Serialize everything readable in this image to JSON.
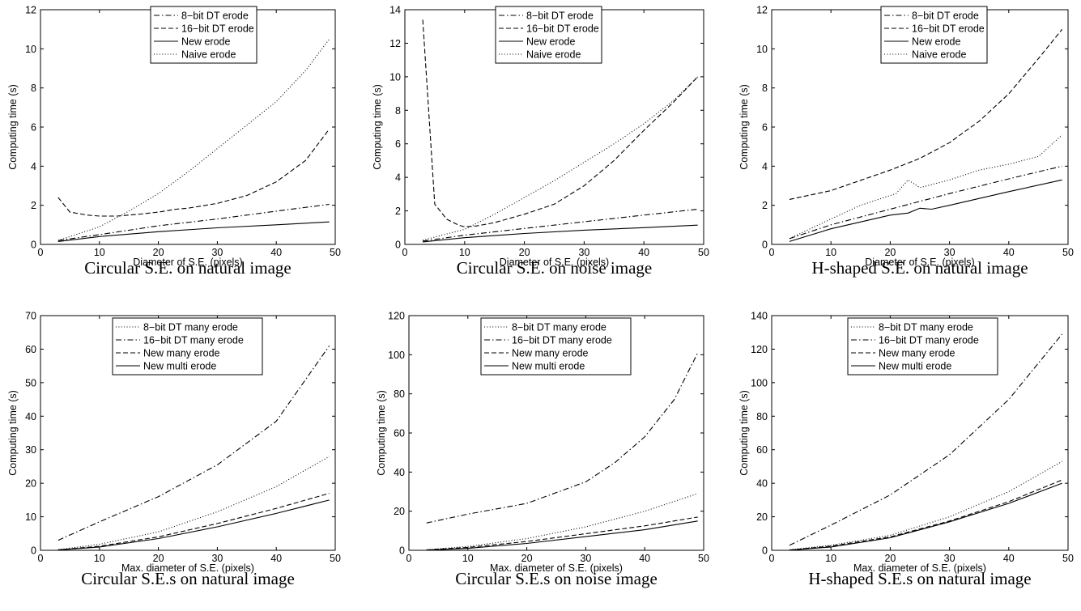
{
  "chart_data": [
    {
      "type": "line",
      "caption": "Circular S.E. on natural image",
      "xlabel": "Diameter of S.E. (pixels)",
      "ylabel": "Computing time (s)",
      "xlim": [
        0,
        50
      ],
      "ylim": [
        0,
        12
      ],
      "xticks": [
        0,
        10,
        20,
        30,
        40,
        50
      ],
      "yticks": [
        0,
        2,
        4,
        6,
        8,
        10,
        12
      ],
      "legend_position": "top-center",
      "series": [
        {
          "name": "8−bit DT erode",
          "style": "dashdot",
          "x": [
            3,
            10,
            20,
            30,
            40,
            49
          ],
          "y": [
            0.2,
            0.5,
            0.95,
            1.3,
            1.7,
            2.05
          ]
        },
        {
          "name": "16−bit DT erode",
          "style": "dashed",
          "x": [
            3,
            5,
            8,
            10,
            13,
            17,
            20,
            23,
            25,
            30,
            35,
            40,
            45,
            49
          ],
          "y": [
            2.4,
            1.65,
            1.5,
            1.45,
            1.45,
            1.55,
            1.65,
            1.8,
            1.85,
            2.1,
            2.5,
            3.2,
            4.3,
            5.9
          ]
        },
        {
          "name": "New erode",
          "style": "solid",
          "x": [
            3,
            10,
            20,
            30,
            40,
            49
          ],
          "y": [
            0.15,
            0.4,
            0.65,
            0.85,
            1.0,
            1.15
          ]
        },
        {
          "name": "Naive erode",
          "style": "dotted",
          "x": [
            3,
            10,
            15,
            20,
            25,
            30,
            35,
            40,
            45,
            49
          ],
          "y": [
            0.2,
            0.9,
            1.7,
            2.6,
            3.7,
            4.9,
            6.1,
            7.3,
            8.9,
            10.5
          ]
        }
      ]
    },
    {
      "type": "line",
      "caption": "Circular S.E. on noise image",
      "xlabel": "Diameter of S.E. (pixels)",
      "ylabel": "Computing time (s)",
      "xlim": [
        0,
        50
      ],
      "ylim": [
        0,
        14
      ],
      "xticks": [
        0,
        10,
        20,
        30,
        40,
        50
      ],
      "yticks": [
        0,
        2,
        4,
        6,
        8,
        10,
        12,
        14
      ],
      "legend_position": "top-center",
      "series": [
        {
          "name": "8−bit DT erode",
          "style": "dashdot",
          "x": [
            3,
            10,
            20,
            30,
            40,
            49
          ],
          "y": [
            0.2,
            0.55,
            0.95,
            1.35,
            1.75,
            2.1
          ]
        },
        {
          "name": "16−bit DT erode",
          "style": "dashed",
          "x": [
            3,
            5,
            7,
            9,
            10,
            12,
            15,
            20,
            25,
            30,
            35,
            40,
            45,
            49
          ],
          "y": [
            13.4,
            2.4,
            1.5,
            1.15,
            1.05,
            1.1,
            1.3,
            1.8,
            2.4,
            3.5,
            5.0,
            6.8,
            8.5,
            10.0
          ]
        },
        {
          "name": "New erode",
          "style": "solid",
          "x": [
            3,
            10,
            20,
            30,
            40,
            49
          ],
          "y": [
            0.15,
            0.4,
            0.65,
            0.85,
            1.0,
            1.15
          ]
        },
        {
          "name": "Naive erode",
          "style": "dotted",
          "x": [
            3,
            10,
            15,
            20,
            25,
            30,
            35,
            40,
            45,
            49
          ],
          "y": [
            0.25,
            0.9,
            1.8,
            2.8,
            3.8,
            4.9,
            6.0,
            7.2,
            8.6,
            10.0
          ]
        }
      ]
    },
    {
      "type": "line",
      "caption": "H-shaped S.E. on natural image",
      "xlabel": "Diameter of S.E. (pixels)",
      "ylabel": "Computing time (s)",
      "xlim": [
        0,
        50
      ],
      "ylim": [
        0,
        12
      ],
      "xticks": [
        0,
        10,
        20,
        30,
        40,
        50
      ],
      "yticks": [
        0,
        2,
        4,
        6,
        8,
        10,
        12
      ],
      "legend_position": "top-center",
      "series": [
        {
          "name": "8−bit DT erode",
          "style": "dashdot",
          "x": [
            3,
            10,
            20,
            30,
            40,
            49
          ],
          "y": [
            0.3,
            1.0,
            1.8,
            2.6,
            3.35,
            4.0
          ]
        },
        {
          "name": "16−bit DT erode",
          "style": "dashed",
          "x": [
            3,
            10,
            20,
            25,
            30,
            35,
            40,
            45,
            49
          ],
          "y": [
            2.3,
            2.75,
            3.8,
            4.4,
            5.2,
            6.3,
            7.7,
            9.5,
            11.0
          ]
        },
        {
          "name": "New erode",
          "style": "solid",
          "x": [
            3,
            10,
            20,
            23,
            25,
            27,
            30,
            40,
            49
          ],
          "y": [
            0.15,
            0.8,
            1.5,
            1.6,
            1.85,
            1.8,
            2.0,
            2.7,
            3.3
          ]
        },
        {
          "name": "Naive erode",
          "style": "dotted",
          "x": [
            3,
            10,
            15,
            20,
            21,
            23,
            25,
            30,
            35,
            40,
            45,
            49
          ],
          "y": [
            0.3,
            1.3,
            2.0,
            2.5,
            2.6,
            3.3,
            2.9,
            3.3,
            3.8,
            4.1,
            4.5,
            5.6
          ]
        }
      ]
    },
    {
      "type": "line",
      "caption": "Circular S.E.s on natural image",
      "xlabel": "Max. diameter of S.E. (pixels)",
      "ylabel": "Computing time (s)",
      "xlim": [
        0,
        50
      ],
      "ylim": [
        0,
        70
      ],
      "xticks": [
        0,
        10,
        20,
        30,
        40,
        50
      ],
      "yticks": [
        0,
        10,
        20,
        30,
        40,
        50,
        60,
        70
      ],
      "legend_position": "top-center",
      "series": [
        {
          "name": "8−bit DT many erode",
          "style": "dotted",
          "x": [
            3,
            10,
            20,
            30,
            40,
            49
          ],
          "y": [
            0.2,
            1.8,
            5.5,
            11.5,
            19.0,
            28.0
          ]
        },
        {
          "name": "16−bit DT many erode",
          "style": "dashdot",
          "x": [
            3,
            10,
            20,
            30,
            40,
            49
          ],
          "y": [
            3.0,
            8.5,
            16.0,
            25.5,
            38.5,
            61.0
          ]
        },
        {
          "name": "New many erode",
          "style": "dashed",
          "x": [
            3,
            10,
            20,
            30,
            40,
            49
          ],
          "y": [
            0.15,
            1.2,
            4.0,
            8.0,
            12.5,
            17.0
          ]
        },
        {
          "name": "New multi erode",
          "style": "solid",
          "x": [
            3,
            10,
            20,
            30,
            40,
            49
          ],
          "y": [
            0.1,
            1.0,
            3.5,
            7.0,
            11.0,
            15.0
          ]
        }
      ]
    },
    {
      "type": "line",
      "caption": "Circular S.E.s on noise image",
      "xlabel": "Max. diameter of S.E. (pixels)",
      "ylabel": "Computing time (s)",
      "xlim": [
        0,
        50
      ],
      "ylim": [
        0,
        120
      ],
      "xticks": [
        0,
        10,
        20,
        30,
        40,
        50
      ],
      "yticks": [
        0,
        20,
        40,
        60,
        80,
        100,
        120
      ],
      "legend_position": "top-center",
      "series": [
        {
          "name": "8−bit DT many erode",
          "style": "dotted",
          "x": [
            3,
            10,
            20,
            30,
            40,
            49
          ],
          "y": [
            0.3,
            2.0,
            6.0,
            12.0,
            20.0,
            29.0
          ]
        },
        {
          "name": "16−bit DT many erode",
          "style": "dashdot",
          "x": [
            3,
            10,
            20,
            30,
            35,
            40,
            45,
            49
          ],
          "y": [
            14.0,
            18.5,
            24.0,
            35.0,
            45.0,
            58.0,
            77.0,
            101.0
          ]
        },
        {
          "name": "New many erode",
          "style": "dashed",
          "x": [
            3,
            10,
            20,
            30,
            40,
            49
          ],
          "y": [
            0.2,
            1.5,
            4.5,
            8.5,
            12.5,
            17.0
          ]
        },
        {
          "name": "New multi erode",
          "style": "solid",
          "x": [
            3,
            10,
            20,
            30,
            40,
            49
          ],
          "y": [
            0.1,
            1.0,
            3.5,
            7.0,
            10.5,
            15.0
          ]
        }
      ]
    },
    {
      "type": "line",
      "caption": "H-shaped S.E.s on natural image",
      "xlabel": "Max. diameter of S.E. (pixels)",
      "ylabel": "Computing time (s)",
      "xlim": [
        0,
        50
      ],
      "ylim": [
        0,
        140
      ],
      "xticks": [
        0,
        10,
        20,
        30,
        40,
        50
      ],
      "yticks": [
        0,
        20,
        40,
        60,
        80,
        100,
        120,
        140
      ],
      "legend_position": "top-center",
      "series": [
        {
          "name": "8−bit DT many erode",
          "style": "dotted",
          "x": [
            3,
            10,
            20,
            30,
            40,
            49
          ],
          "y": [
            0.3,
            3.0,
            9.0,
            20.0,
            35.0,
            53.0
          ]
        },
        {
          "name": "16−bit DT many erode",
          "style": "dashdot",
          "x": [
            3,
            10,
            20,
            30,
            40,
            49
          ],
          "y": [
            3.0,
            15.0,
            33.0,
            57.0,
            90.0,
            129.0
          ]
        },
        {
          "name": "New many erode",
          "style": "dashed",
          "x": [
            3,
            10,
            20,
            30,
            40,
            49
          ],
          "y": [
            0.2,
            2.5,
            8.0,
            17.5,
            29.0,
            42.0
          ]
        },
        {
          "name": "New multi erode",
          "style": "solid",
          "x": [
            3,
            10,
            20,
            30,
            40,
            49
          ],
          "y": [
            0.1,
            2.0,
            7.5,
            17.0,
            28.0,
            40.0
          ]
        }
      ]
    }
  ]
}
